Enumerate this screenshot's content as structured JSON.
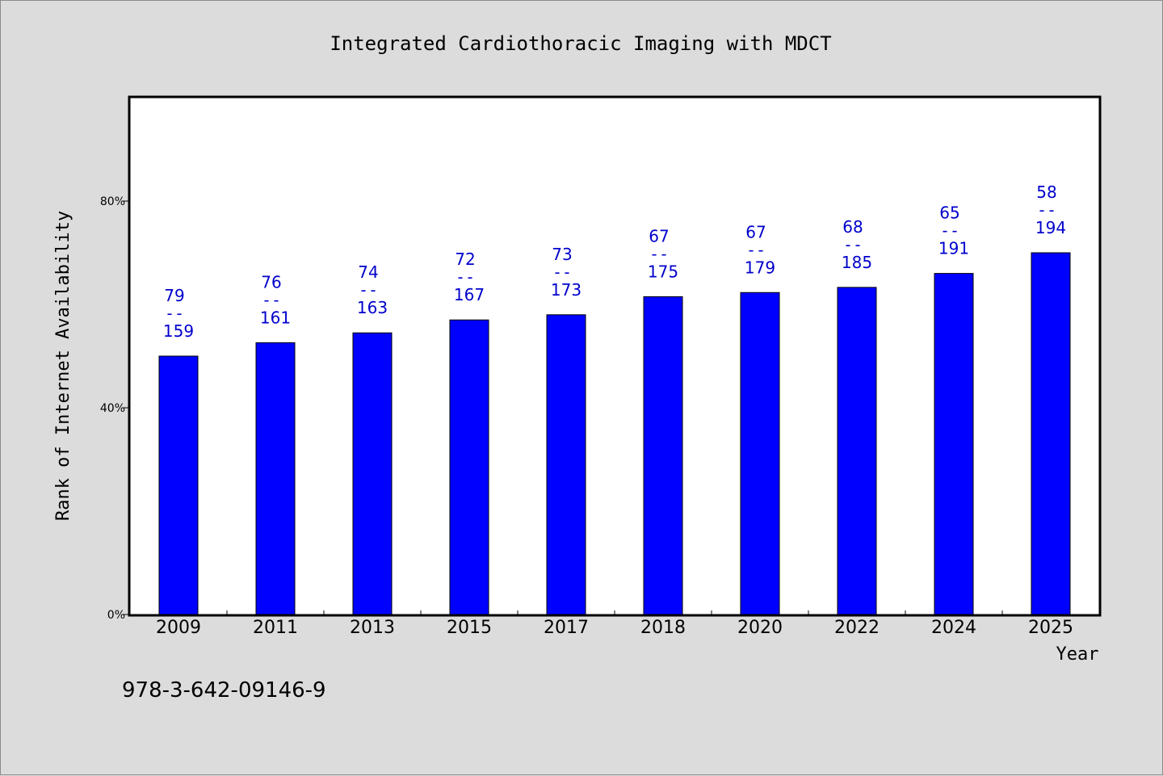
{
  "chart_data": {
    "type": "bar",
    "title": "Integrated Cardiothoracic Imaging with MDCT",
    "xlabel": "Year",
    "ylabel": "Rank of Internet Availability",
    "ylim": [
      0,
      100
    ],
    "y_ticks": [
      0,
      40,
      80
    ],
    "y_tick_labels": [
      "0%",
      "40%",
      "80%"
    ],
    "categories": [
      "2009",
      "2011",
      "2013",
      "2015",
      "2017",
      "2018",
      "2020",
      "2022",
      "2024",
      "2025"
    ],
    "values": [
      50,
      52.6,
      54.5,
      57,
      58,
      61.5,
      62.3,
      63.3,
      66,
      70
    ],
    "data_labels": [
      {
        "top": "79",
        "sep": "--",
        "bottom": "159"
      },
      {
        "top": "76",
        "sep": "--",
        "bottom": "161"
      },
      {
        "top": "74",
        "sep": "--",
        "bottom": "163"
      },
      {
        "top": "72",
        "sep": "--",
        "bottom": "167"
      },
      {
        "top": "73",
        "sep": "--",
        "bottom": "173"
      },
      {
        "top": "67",
        "sep": "--",
        "bottom": "175"
      },
      {
        "top": "67",
        "sep": "--",
        "bottom": "179"
      },
      {
        "top": "68",
        "sep": "--",
        "bottom": "185"
      },
      {
        "top": "65",
        "sep": "--",
        "bottom": "191"
      },
      {
        "top": "58",
        "sep": "--",
        "bottom": "194"
      }
    ],
    "grid": false,
    "legend": "none",
    "colors": {
      "bar": "#0000ff",
      "label": "#0000cc",
      "background": "#dcdcdc",
      "plot": "#ffffff",
      "axis": "#000000"
    }
  },
  "footer": {
    "isbn": "978-3-642-09146-9"
  }
}
